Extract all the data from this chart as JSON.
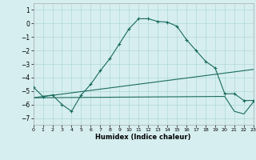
{
  "xlabel": "Humidex (Indice chaleur)",
  "background_color": "#d6eef0",
  "grid_color": "#b0d8da",
  "line_color": "#1a6b5e",
  "xlim": [
    0,
    23
  ],
  "ylim": [
    -7.5,
    1.5
  ],
  "yticks": [
    1,
    0,
    -1,
    -2,
    -3,
    -4,
    -5,
    -6,
    -7
  ],
  "xticks": [
    0,
    1,
    2,
    3,
    4,
    5,
    6,
    7,
    8,
    9,
    10,
    11,
    12,
    13,
    14,
    15,
    16,
    17,
    18,
    19,
    20,
    21,
    22,
    23
  ],
  "line1_x": [
    0,
    1,
    2,
    3,
    4,
    5,
    6,
    7,
    8,
    9,
    10,
    11,
    12,
    13,
    14,
    15,
    16,
    17,
    18,
    19,
    20,
    21,
    22,
    23
  ],
  "line1_y": [
    -4.7,
    -5.4,
    -5.3,
    -6.0,
    -6.5,
    -5.3,
    -4.5,
    -3.5,
    -2.6,
    -1.5,
    -0.4,
    0.35,
    0.35,
    0.15,
    0.1,
    -0.2,
    -1.2,
    -2.0,
    -2.8,
    -3.3,
    -5.2,
    -5.2,
    -5.7,
    -5.7
  ],
  "line2_x": [
    0,
    23
  ],
  "line2_y": [
    -5.5,
    -3.4
  ],
  "line3_x": [
    0,
    20,
    21,
    22,
    23
  ],
  "line3_y": [
    -5.5,
    -5.4,
    -6.5,
    -6.7,
    -5.8
  ]
}
